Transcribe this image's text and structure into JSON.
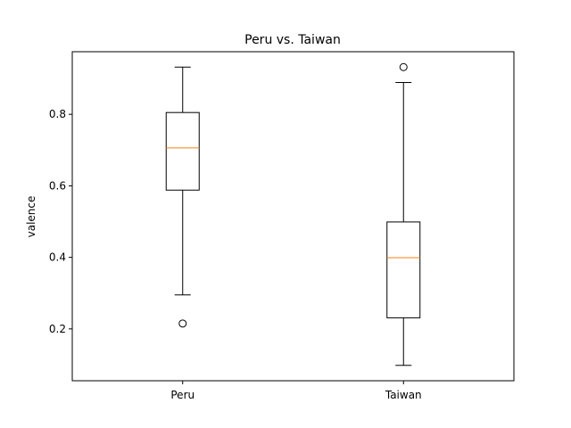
{
  "chart_data": {
    "type": "box",
    "title": "Peru vs. Taiwan",
    "xlabel": "",
    "ylabel": "valence",
    "categories": [
      "Peru",
      "Taiwan"
    ],
    "ylim": [
      0.055,
      0.975
    ],
    "yticks": [
      0.2,
      0.4,
      0.6,
      0.8
    ],
    "ytick_labels": [
      "0.2",
      "0.4",
      "0.6",
      "0.8"
    ],
    "grid": false,
    "colors": {
      "box": "#000000",
      "median": "#ff7f0e",
      "frame": "#000000"
    },
    "boxes": [
      {
        "name": "Peru",
        "whisker_low": 0.295,
        "q1": 0.588,
        "median": 0.706,
        "q3": 0.805,
        "whisker_high": 0.932,
        "outliers": [
          0.215
        ]
      },
      {
        "name": "Taiwan",
        "whisker_low": 0.098,
        "q1": 0.231,
        "median": 0.399,
        "q3": 0.499,
        "whisker_high": 0.889,
        "outliers": [
          0.932
        ]
      }
    ]
  }
}
